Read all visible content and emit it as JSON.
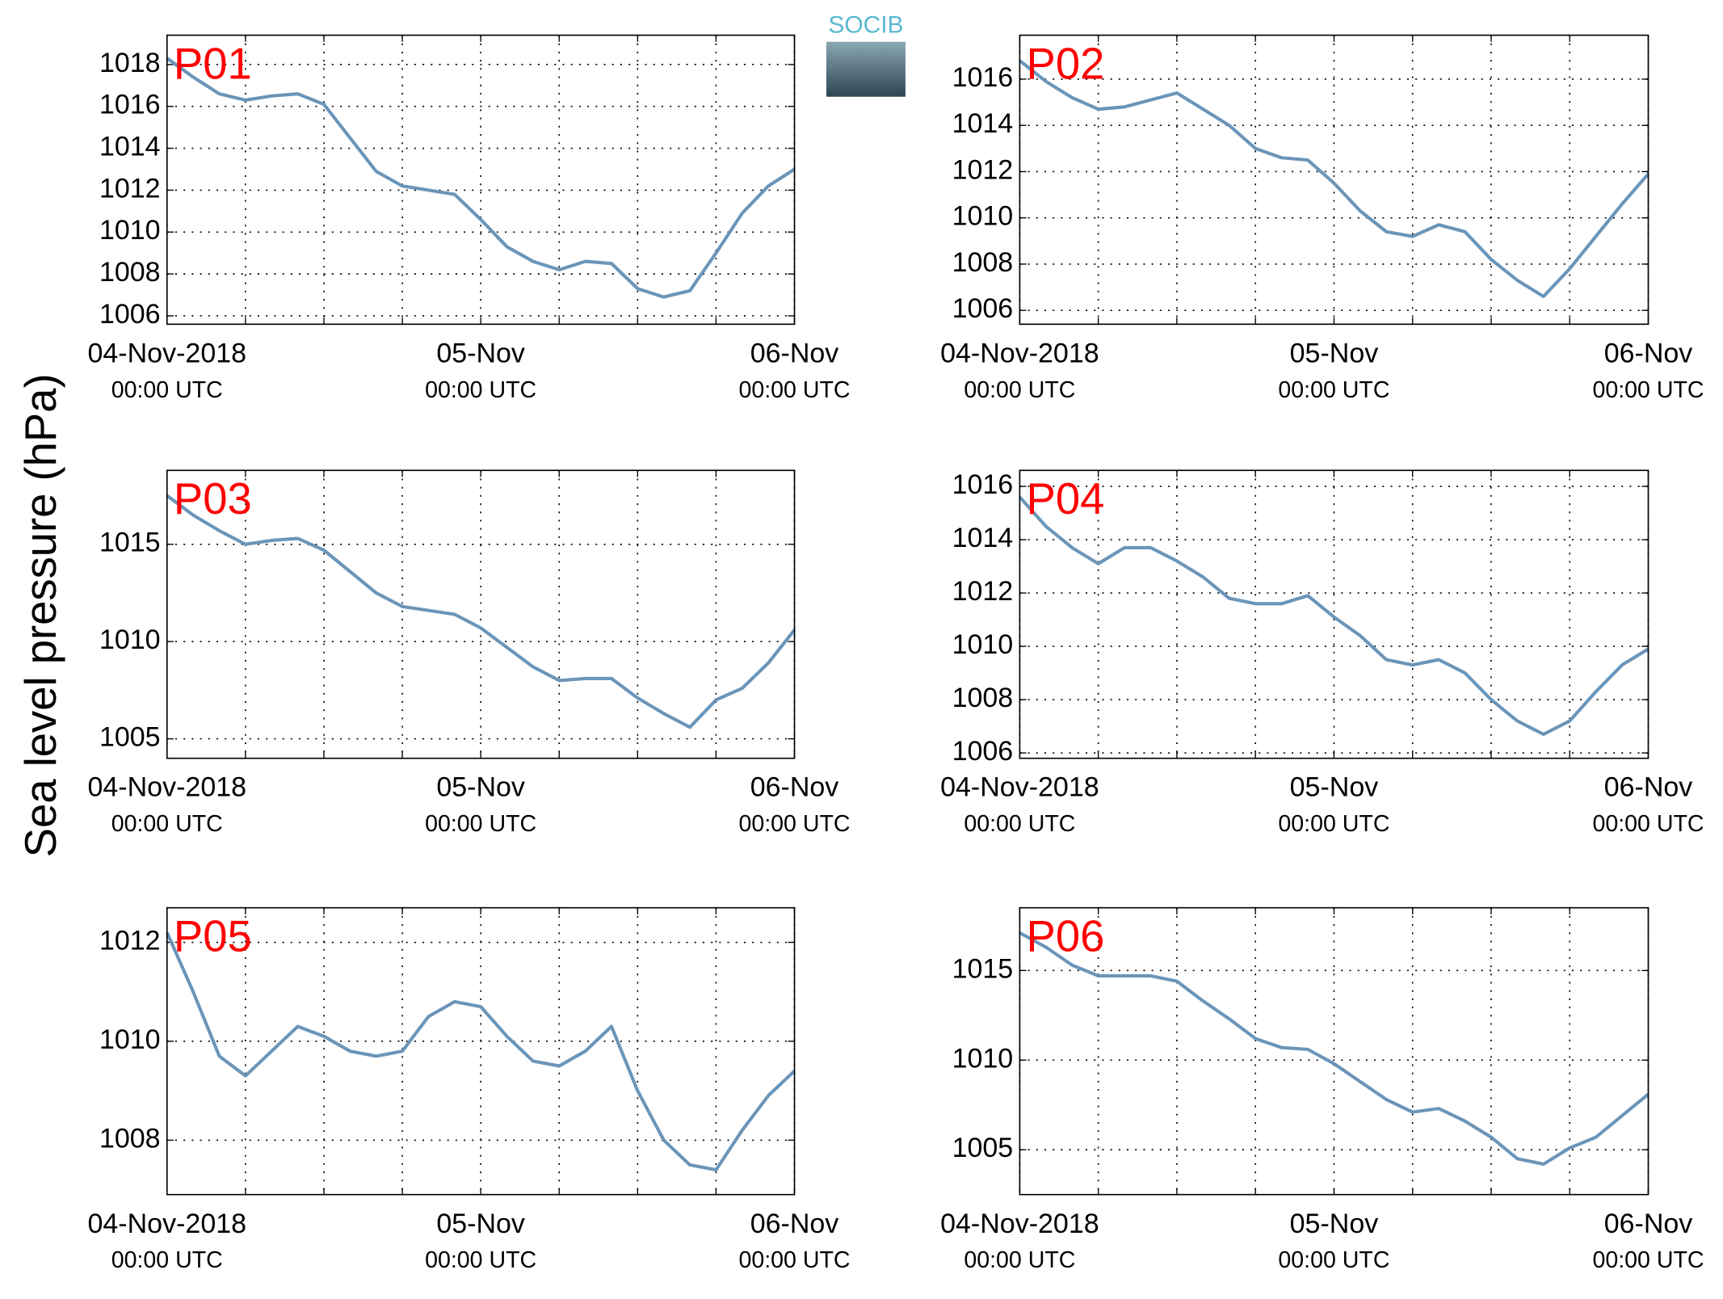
{
  "logo": "SOCIB",
  "shared_ylabel": "Sea level pressure (hPa)",
  "chart_data": [
    {
      "type": "line",
      "label": "P01",
      "color": "#6a95b9",
      "grid": true,
      "x": [
        "2018-11-04T00:00",
        "2018-11-04T02:00",
        "2018-11-04T04:00",
        "2018-11-04T06:00",
        "2018-11-04T08:00",
        "2018-11-04T10:00",
        "2018-11-04T12:00",
        "2018-11-04T14:00",
        "2018-11-04T16:00",
        "2018-11-04T18:00",
        "2018-11-04T20:00",
        "2018-11-04T22:00",
        "2018-11-05T00:00",
        "2018-11-05T02:00",
        "2018-11-05T04:00",
        "2018-11-05T06:00",
        "2018-11-05T08:00",
        "2018-11-05T10:00",
        "2018-11-05T12:00",
        "2018-11-05T14:00",
        "2018-11-05T16:00",
        "2018-11-05T18:00",
        "2018-11-05T20:00",
        "2018-11-05T22:00",
        "2018-11-06T00:00"
      ],
      "values": [
        1018.3,
        1017.4,
        1016.6,
        1016.3,
        1016.5,
        1016.6,
        1016.1,
        1014.5,
        1012.9,
        1012.2,
        1012.0,
        1011.8,
        1010.6,
        1009.3,
        1008.6,
        1008.2,
        1008.6,
        1008.5,
        1007.3,
        1006.9,
        1007.2,
        1009.0,
        1010.9,
        1012.2,
        1013.0
      ],
      "xlim": [
        "2018-11-04T00:00",
        "2018-11-06T00:00"
      ],
      "xticks": [
        {
          "value": "2018-11-04T00:00",
          "label": "04-Nov-2018",
          "sublabel": "00:00 UTC"
        },
        {
          "value": "2018-11-04T06:00",
          "label": null
        },
        {
          "value": "2018-11-04T12:00",
          "label": null
        },
        {
          "value": "2018-11-04T18:00",
          "label": null
        },
        {
          "value": "2018-11-05T00:00",
          "label": "05-Nov",
          "sublabel": "00:00 UTC"
        },
        {
          "value": "2018-11-05T06:00",
          "label": null
        },
        {
          "value": "2018-11-05T12:00",
          "label": null
        },
        {
          "value": "2018-11-05T18:00",
          "label": null
        },
        {
          "value": "2018-11-06T00:00",
          "label": "06-Nov",
          "sublabel": "00:00 UTC"
        }
      ],
      "ylim": [
        1005.6,
        1019.4
      ],
      "yticks": [
        1006,
        1008,
        1010,
        1012,
        1014,
        1016,
        1018
      ]
    },
    {
      "type": "line",
      "label": "P02",
      "color": "#6a95b9",
      "grid": true,
      "x": [
        "2018-11-04T00:00",
        "2018-11-04T02:00",
        "2018-11-04T04:00",
        "2018-11-04T06:00",
        "2018-11-04T08:00",
        "2018-11-04T10:00",
        "2018-11-04T12:00",
        "2018-11-04T14:00",
        "2018-11-04T16:00",
        "2018-11-04T18:00",
        "2018-11-04T20:00",
        "2018-11-04T22:00",
        "2018-11-05T00:00",
        "2018-11-05T02:00",
        "2018-11-05T04:00",
        "2018-11-05T06:00",
        "2018-11-05T08:00",
        "2018-11-05T10:00",
        "2018-11-05T12:00",
        "2018-11-05T14:00",
        "2018-11-05T16:00",
        "2018-11-05T18:00",
        "2018-11-05T20:00",
        "2018-11-05T22:00",
        "2018-11-06T00:00"
      ],
      "values": [
        1016.8,
        1015.9,
        1015.2,
        1014.7,
        1014.8,
        1015.1,
        1015.4,
        1014.7,
        1014.0,
        1013.0,
        1012.6,
        1012.5,
        1011.5,
        1010.3,
        1009.4,
        1009.2,
        1009.7,
        1009.4,
        1008.2,
        1007.3,
        1006.6,
        1007.8,
        1009.2,
        1010.6,
        1011.9
      ],
      "xlim": [
        "2018-11-04T00:00",
        "2018-11-06T00:00"
      ],
      "xticks": [
        {
          "value": "2018-11-04T00:00",
          "label": "04-Nov-2018",
          "sublabel": "00:00 UTC"
        },
        {
          "value": "2018-11-04T06:00",
          "label": null
        },
        {
          "value": "2018-11-04T12:00",
          "label": null
        },
        {
          "value": "2018-11-04T18:00",
          "label": null
        },
        {
          "value": "2018-11-05T00:00",
          "label": "05-Nov",
          "sublabel": "00:00 UTC"
        },
        {
          "value": "2018-11-05T06:00",
          "label": null
        },
        {
          "value": "2018-11-05T12:00",
          "label": null
        },
        {
          "value": "2018-11-05T18:00",
          "label": null
        },
        {
          "value": "2018-11-06T00:00",
          "label": "06-Nov",
          "sublabel": "00:00 UTC"
        }
      ],
      "ylim": [
        1005.4,
        1017.9
      ],
      "yticks": [
        1006,
        1008,
        1010,
        1012,
        1014,
        1016
      ]
    },
    {
      "type": "line",
      "label": "P03",
      "color": "#6a95b9",
      "grid": true,
      "x": [
        "2018-11-04T00:00",
        "2018-11-04T02:00",
        "2018-11-04T04:00",
        "2018-11-04T06:00",
        "2018-11-04T08:00",
        "2018-11-04T10:00",
        "2018-11-04T12:00",
        "2018-11-04T14:00",
        "2018-11-04T16:00",
        "2018-11-04T18:00",
        "2018-11-04T20:00",
        "2018-11-04T22:00",
        "2018-11-05T00:00",
        "2018-11-05T02:00",
        "2018-11-05T04:00",
        "2018-11-05T06:00",
        "2018-11-05T08:00",
        "2018-11-05T10:00",
        "2018-11-05T12:00",
        "2018-11-05T14:00",
        "2018-11-05T16:00",
        "2018-11-05T18:00",
        "2018-11-05T20:00",
        "2018-11-05T22:00",
        "2018-11-06T00:00"
      ],
      "values": [
        1017.5,
        1016.5,
        1015.7,
        1015.0,
        1015.2,
        1015.3,
        1014.7,
        1013.6,
        1012.5,
        1011.8,
        1011.6,
        1011.4,
        1010.7,
        1009.7,
        1008.7,
        1008.0,
        1008.1,
        1008.1,
        1007.1,
        1006.3,
        1005.6,
        1007.0,
        1007.6,
        1008.9,
        1010.6
      ],
      "xlim": [
        "2018-11-04T00:00",
        "2018-11-06T00:00"
      ],
      "xticks": [
        {
          "value": "2018-11-04T00:00",
          "label": "04-Nov-2018",
          "sublabel": "00:00 UTC"
        },
        {
          "value": "2018-11-04T06:00",
          "label": null
        },
        {
          "value": "2018-11-04T12:00",
          "label": null
        },
        {
          "value": "2018-11-04T18:00",
          "label": null
        },
        {
          "value": "2018-11-05T00:00",
          "label": "05-Nov",
          "sublabel": "00:00 UTC"
        },
        {
          "value": "2018-11-05T06:00",
          "label": null
        },
        {
          "value": "2018-11-05T12:00",
          "label": null
        },
        {
          "value": "2018-11-05T18:00",
          "label": null
        },
        {
          "value": "2018-11-06T00:00",
          "label": "06-Nov",
          "sublabel": "00:00 UTC"
        }
      ],
      "ylim": [
        1004.0,
        1018.8
      ],
      "yticks": [
        1005,
        1010,
        1015
      ]
    },
    {
      "type": "line",
      "label": "P04",
      "color": "#6a95b9",
      "grid": true,
      "x": [
        "2018-11-04T00:00",
        "2018-11-04T02:00",
        "2018-11-04T04:00",
        "2018-11-04T06:00",
        "2018-11-04T08:00",
        "2018-11-04T10:00",
        "2018-11-04T12:00",
        "2018-11-04T14:00",
        "2018-11-04T16:00",
        "2018-11-04T18:00",
        "2018-11-04T20:00",
        "2018-11-04T22:00",
        "2018-11-05T00:00",
        "2018-11-05T02:00",
        "2018-11-05T04:00",
        "2018-11-05T06:00",
        "2018-11-05T08:00",
        "2018-11-05T10:00",
        "2018-11-05T12:00",
        "2018-11-05T14:00",
        "2018-11-05T16:00",
        "2018-11-05T18:00",
        "2018-11-05T20:00",
        "2018-11-05T22:00",
        "2018-11-06T00:00"
      ],
      "values": [
        1015.6,
        1014.5,
        1013.7,
        1013.1,
        1013.7,
        1013.7,
        1013.2,
        1012.6,
        1011.8,
        1011.6,
        1011.6,
        1011.9,
        1011.1,
        1010.4,
        1009.5,
        1009.3,
        1009.5,
        1009.0,
        1008.0,
        1007.2,
        1006.7,
        1007.2,
        1008.3,
        1009.3,
        1009.9
      ],
      "xlim": [
        "2018-11-04T00:00",
        "2018-11-06T00:00"
      ],
      "xticks": [
        {
          "value": "2018-11-04T00:00",
          "label": "04-Nov-2018",
          "sublabel": "00:00 UTC"
        },
        {
          "value": "2018-11-04T06:00",
          "label": null
        },
        {
          "value": "2018-11-04T12:00",
          "label": null
        },
        {
          "value": "2018-11-04T18:00",
          "label": null
        },
        {
          "value": "2018-11-05T00:00",
          "label": "05-Nov",
          "sublabel": "00:00 UTC"
        },
        {
          "value": "2018-11-05T06:00",
          "label": null
        },
        {
          "value": "2018-11-05T12:00",
          "label": null
        },
        {
          "value": "2018-11-05T18:00",
          "label": null
        },
        {
          "value": "2018-11-06T00:00",
          "label": "06-Nov",
          "sublabel": "00:00 UTC"
        }
      ],
      "ylim": [
        1005.8,
        1016.6
      ],
      "yticks": [
        1006,
        1008,
        1010,
        1012,
        1014,
        1016
      ]
    },
    {
      "type": "line",
      "label": "P05",
      "color": "#6a95b9",
      "grid": true,
      "x": [
        "2018-11-04T00:00",
        "2018-11-04T02:00",
        "2018-11-04T04:00",
        "2018-11-04T06:00",
        "2018-11-04T08:00",
        "2018-11-04T10:00",
        "2018-11-04T12:00",
        "2018-11-04T14:00",
        "2018-11-04T16:00",
        "2018-11-04T18:00",
        "2018-11-04T20:00",
        "2018-11-04T22:00",
        "2018-11-05T00:00",
        "2018-11-05T02:00",
        "2018-11-05T04:00",
        "2018-11-05T06:00",
        "2018-11-05T08:00",
        "2018-11-05T10:00",
        "2018-11-05T12:00",
        "2018-11-05T14:00",
        "2018-11-05T16:00",
        "2018-11-05T18:00",
        "2018-11-05T20:00",
        "2018-11-05T22:00",
        "2018-11-06T00:00"
      ],
      "values": [
        1012.2,
        1011.0,
        1009.7,
        1009.3,
        1009.8,
        1010.3,
        1010.1,
        1009.8,
        1009.7,
        1009.8,
        1010.5,
        1010.8,
        1010.7,
        1010.1,
        1009.6,
        1009.5,
        1009.8,
        1010.3,
        1009.0,
        1008.0,
        1007.5,
        1007.4,
        1008.2,
        1008.9,
        1009.4
      ],
      "xlim": [
        "2018-11-04T00:00",
        "2018-11-06T00:00"
      ],
      "xticks": [
        {
          "value": "2018-11-04T00:00",
          "label": "04-Nov-2018",
          "sublabel": "00:00 UTC"
        },
        {
          "value": "2018-11-04T06:00",
          "label": null
        },
        {
          "value": "2018-11-04T12:00",
          "label": null
        },
        {
          "value": "2018-11-04T18:00",
          "label": null
        },
        {
          "value": "2018-11-05T00:00",
          "label": "05-Nov",
          "sublabel": "00:00 UTC"
        },
        {
          "value": "2018-11-05T06:00",
          "label": null
        },
        {
          "value": "2018-11-05T12:00",
          "label": null
        },
        {
          "value": "2018-11-05T18:00",
          "label": null
        },
        {
          "value": "2018-11-06T00:00",
          "label": "06-Nov",
          "sublabel": "00:00 UTC"
        }
      ],
      "ylim": [
        1006.9,
        1012.7
      ],
      "yticks": [
        1008,
        1010,
        1012
      ]
    },
    {
      "type": "line",
      "label": "P06",
      "color": "#6a95b9",
      "grid": true,
      "x": [
        "2018-11-04T00:00",
        "2018-11-04T02:00",
        "2018-11-04T04:00",
        "2018-11-04T06:00",
        "2018-11-04T08:00",
        "2018-11-04T10:00",
        "2018-11-04T12:00",
        "2018-11-04T14:00",
        "2018-11-04T16:00",
        "2018-11-04T18:00",
        "2018-11-04T20:00",
        "2018-11-04T22:00",
        "2018-11-05T00:00",
        "2018-11-05T02:00",
        "2018-11-05T04:00",
        "2018-11-05T06:00",
        "2018-11-05T08:00",
        "2018-11-05T10:00",
        "2018-11-05T12:00",
        "2018-11-05T14:00",
        "2018-11-05T16:00",
        "2018-11-05T18:00",
        "2018-11-05T20:00",
        "2018-11-05T22:00",
        "2018-11-06T00:00"
      ],
      "values": [
        1017.1,
        1016.3,
        1015.3,
        1014.7,
        1014.7,
        1014.7,
        1014.4,
        1013.3,
        1012.3,
        1011.2,
        1010.7,
        1010.6,
        1009.8,
        1008.8,
        1007.8,
        1007.1,
        1007.3,
        1006.6,
        1005.7,
        1004.5,
        1004.2,
        1005.1,
        1005.7,
        1006.9,
        1008.1
      ],
      "xlim": [
        "2018-11-04T00:00",
        "2018-11-06T00:00"
      ],
      "xticks": [
        {
          "value": "2018-11-04T00:00",
          "label": "04-Nov-2018",
          "sublabel": "00:00 UTC"
        },
        {
          "value": "2018-11-04T06:00",
          "label": null
        },
        {
          "value": "2018-11-04T12:00",
          "label": null
        },
        {
          "value": "2018-11-04T18:00",
          "label": null
        },
        {
          "value": "2018-11-05T00:00",
          "label": "05-Nov",
          "sublabel": "00:00 UTC"
        },
        {
          "value": "2018-11-05T06:00",
          "label": null
        },
        {
          "value": "2018-11-05T12:00",
          "label": null
        },
        {
          "value": "2018-11-05T18:00",
          "label": null
        },
        {
          "value": "2018-11-06T00:00",
          "label": "06-Nov",
          "sublabel": "00:00 UTC"
        }
      ],
      "ylim": [
        1002.5,
        1018.5
      ],
      "yticks": [
        1005,
        1010,
        1015
      ]
    }
  ]
}
